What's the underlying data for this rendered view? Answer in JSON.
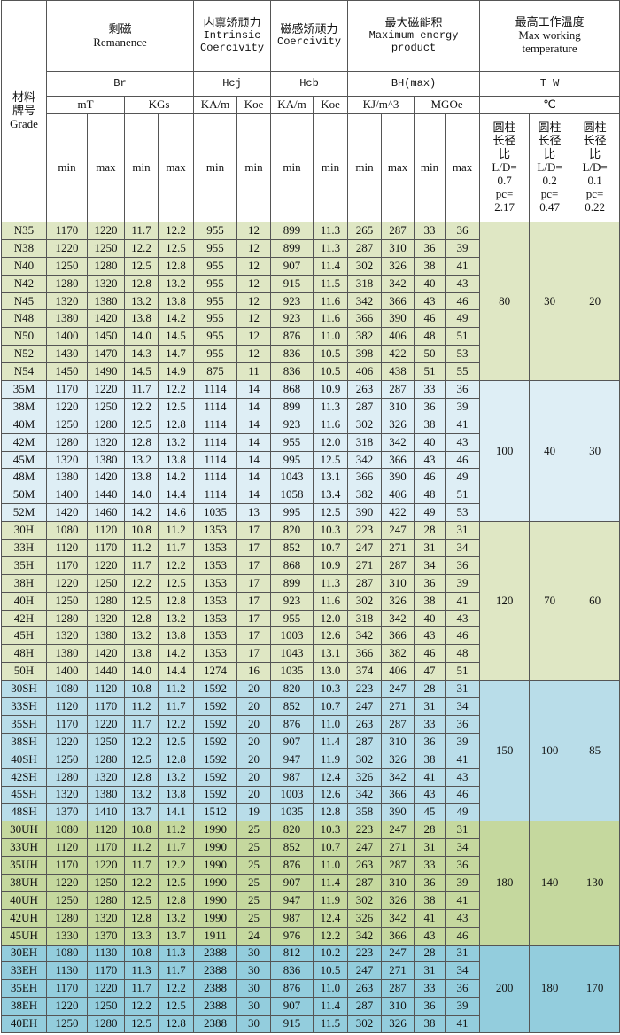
{
  "header": {
    "grade": [
      "材料",
      "牌号",
      "Grade"
    ],
    "remanence": [
      "剩磁",
      "Remanence"
    ],
    "intrinsic": [
      "内禀矫顽力",
      "Intrinsic",
      "Coercivity"
    ],
    "coercivity": [
      "磁感矫顽力",
      "Coercivity"
    ],
    "energy": [
      "最大磁能积",
      "Maximum energy",
      "product"
    ],
    "temperature": [
      "最高工作温度",
      "Max working",
      "temperature"
    ],
    "symbols": {
      "br": "Br",
      "hcj": "Hcj",
      "hcb": "Hcb",
      "bh": "BH(max)",
      "tw": "T W"
    },
    "units": {
      "mt": "mT",
      "kgs": "KGs",
      "kam1": "KA/m",
      "koe1": "Koe",
      "kam2": "KA/m",
      "koe2": "Koe",
      "kj": "KJ/m^3",
      "mgoe": "MGOe",
      "c": "℃"
    },
    "minmax": [
      "min",
      "max",
      "min",
      "max",
      "min",
      "min",
      "min",
      "min",
      "min",
      "max",
      "min",
      "max"
    ],
    "temp_cols": [
      [
        "圆柱",
        "长径",
        "比",
        "L/D=",
        "0.7",
        "pc=",
        "2.17"
      ],
      [
        "圆柱",
        "长径",
        "比",
        "L/D=",
        "0.2",
        "pc=",
        "0.47"
      ],
      [
        "圆柱",
        "长径",
        "比",
        "L/D=",
        "0.1",
        "pc=",
        "0.22"
      ]
    ]
  },
  "colors": {
    "N": "#dfe7c4",
    "M": "#deeef5",
    "H": "#dfe7c4",
    "SH": "#b9dde9",
    "UH": "#c5d89e",
    "EH": "#93cddd"
  },
  "groups": [
    {
      "id": "N",
      "temps": [
        "80",
        "30",
        "20"
      ],
      "rows": [
        [
          "N35",
          "1170",
          "1220",
          "11.7",
          "12.2",
          "955",
          "12",
          "899",
          "11.3",
          "265",
          "287",
          "33",
          "36"
        ],
        [
          "N38",
          "1220",
          "1250",
          "12.2",
          "12.5",
          "955",
          "12",
          "899",
          "11.3",
          "287",
          "310",
          "36",
          "39"
        ],
        [
          "N40",
          "1250",
          "1280",
          "12.5",
          "12.8",
          "955",
          "12",
          "907",
          "11.4",
          "302",
          "326",
          "38",
          "41"
        ],
        [
          "N42",
          "1280",
          "1320",
          "12.8",
          "13.2",
          "955",
          "12",
          "915",
          "11.5",
          "318",
          "342",
          "40",
          "43"
        ],
        [
          "N45",
          "1320",
          "1380",
          "13.2",
          "13.8",
          "955",
          "12",
          "923",
          "11.6",
          "342",
          "366",
          "43",
          "46"
        ],
        [
          "N48",
          "1380",
          "1420",
          "13.8",
          "14.2",
          "955",
          "12",
          "923",
          "11.6",
          "366",
          "390",
          "46",
          "49"
        ],
        [
          "N50",
          "1400",
          "1450",
          "14.0",
          "14.5",
          "955",
          "12",
          "876",
          "11.0",
          "382",
          "406",
          "48",
          "51"
        ],
        [
          "N52",
          "1430",
          "1470",
          "14.3",
          "14.7",
          "955",
          "12",
          "836",
          "10.5",
          "398",
          "422",
          "50",
          "53"
        ],
        [
          "N54",
          "1450",
          "1490",
          "14.5",
          "14.9",
          "875",
          "11",
          "836",
          "10.5",
          "406",
          "438",
          "51",
          "55"
        ]
      ]
    },
    {
      "id": "M",
      "temps": [
        "100",
        "40",
        "30"
      ],
      "rows": [
        [
          "35M",
          "1170",
          "1220",
          "11.7",
          "12.2",
          "1114",
          "14",
          "868",
          "10.9",
          "263",
          "287",
          "33",
          "36"
        ],
        [
          "38M",
          "1220",
          "1250",
          "12.2",
          "12.5",
          "1114",
          "14",
          "899",
          "11.3",
          "287",
          "310",
          "36",
          "39"
        ],
        [
          "40M",
          "1250",
          "1280",
          "12.5",
          "12.8",
          "1114",
          "14",
          "923",
          "11.6",
          "302",
          "326",
          "38",
          "41"
        ],
        [
          "42M",
          "1280",
          "1320",
          "12.8",
          "13.2",
          "1114",
          "14",
          "955",
          "12.0",
          "318",
          "342",
          "40",
          "43"
        ],
        [
          "45M",
          "1320",
          "1380",
          "13.2",
          "13.8",
          "1114",
          "14",
          "995",
          "12.5",
          "342",
          "366",
          "43",
          "46"
        ],
        [
          "48M",
          "1380",
          "1420",
          "13.8",
          "14.2",
          "1114",
          "14",
          "1043",
          "13.1",
          "366",
          "390",
          "46",
          "49"
        ],
        [
          "50M",
          "1400",
          "1440",
          "14.0",
          "14.4",
          "1114",
          "14",
          "1058",
          "13.4",
          "382",
          "406",
          "48",
          "51"
        ],
        [
          "52M",
          "1420",
          "1460",
          "14.2",
          "14.6",
          "1035",
          "13",
          "995",
          "12.5",
          "390",
          "422",
          "49",
          "53"
        ]
      ]
    },
    {
      "id": "H",
      "temps": [
        "120",
        "70",
        "60"
      ],
      "rows": [
        [
          "30H",
          "1080",
          "1120",
          "10.8",
          "11.2",
          "1353",
          "17",
          "820",
          "10.3",
          "223",
          "247",
          "28",
          "31"
        ],
        [
          "33H",
          "1120",
          "1170",
          "11.2",
          "11.7",
          "1353",
          "17",
          "852",
          "10.7",
          "247",
          "271",
          "31",
          "34"
        ],
        [
          "35H",
          "1170",
          "1220",
          "11.7",
          "12.2",
          "1353",
          "17",
          "868",
          "10.9",
          "271",
          "287",
          "34",
          "36"
        ],
        [
          "38H",
          "1220",
          "1250",
          "12.2",
          "12.5",
          "1353",
          "17",
          "899",
          "11.3",
          "287",
          "310",
          "36",
          "39"
        ],
        [
          "40H",
          "1250",
          "1280",
          "12.5",
          "12.8",
          "1353",
          "17",
          "923",
          "11.6",
          "302",
          "326",
          "38",
          "41"
        ],
        [
          "42H",
          "1280",
          "1320",
          "12.8",
          "13.2",
          "1353",
          "17",
          "955",
          "12.0",
          "318",
          "342",
          "40",
          "43"
        ],
        [
          "45H",
          "1320",
          "1380",
          "13.2",
          "13.8",
          "1353",
          "17",
          "1003",
          "12.6",
          "342",
          "366",
          "43",
          "46"
        ],
        [
          "48H",
          "1380",
          "1420",
          "13.8",
          "14.2",
          "1353",
          "17",
          "1043",
          "13.1",
          "366",
          "382",
          "46",
          "48"
        ],
        [
          "50H",
          "1400",
          "1440",
          "14.0",
          "14.4",
          "1274",
          "16",
          "1035",
          "13.0",
          "374",
          "406",
          "47",
          "51"
        ]
      ]
    },
    {
      "id": "SH",
      "temps": [
        "150",
        "100",
        "85"
      ],
      "rows": [
        [
          "30SH",
          "1080",
          "1120",
          "10.8",
          "11.2",
          "1592",
          "20",
          "820",
          "10.3",
          "223",
          "247",
          "28",
          "31"
        ],
        [
          "33SH",
          "1120",
          "1170",
          "11.2",
          "11.7",
          "1592",
          "20",
          "852",
          "10.7",
          "247",
          "271",
          "31",
          "34"
        ],
        [
          "35SH",
          "1170",
          "1220",
          "11.7",
          "12.2",
          "1592",
          "20",
          "876",
          "11.0",
          "263",
          "287",
          "33",
          "36"
        ],
        [
          "38SH",
          "1220",
          "1250",
          "12.2",
          "12.5",
          "1592",
          "20",
          "907",
          "11.4",
          "287",
          "310",
          "36",
          "39"
        ],
        [
          "40SH",
          "1250",
          "1280",
          "12.5",
          "12.8",
          "1592",
          "20",
          "947",
          "11.9",
          "302",
          "326",
          "38",
          "41"
        ],
        [
          "42SH",
          "1280",
          "1320",
          "12.8",
          "13.2",
          "1592",
          "20",
          "987",
          "12.4",
          "326",
          "342",
          "41",
          "43"
        ],
        [
          "45SH",
          "1320",
          "1380",
          "13.2",
          "13.8",
          "1592",
          "20",
          "1003",
          "12.6",
          "342",
          "366",
          "43",
          "46"
        ],
        [
          "48SH",
          "1370",
          "1410",
          "13.7",
          "14.1",
          "1512",
          "19",
          "1035",
          "12.8",
          "358",
          "390",
          "45",
          "49"
        ]
      ]
    },
    {
      "id": "UH",
      "temps": [
        "180",
        "140",
        "130"
      ],
      "rows": [
        [
          "30UH",
          "1080",
          "1120",
          "10.8",
          "11.2",
          "1990",
          "25",
          "820",
          "10.3",
          "223",
          "247",
          "28",
          "31"
        ],
        [
          "33UH",
          "1120",
          "1170",
          "11.2",
          "11.7",
          "1990",
          "25",
          "852",
          "10.7",
          "247",
          "271",
          "31",
          "34"
        ],
        [
          "35UH",
          "1170",
          "1220",
          "11.7",
          "12.2",
          "1990",
          "25",
          "876",
          "11.0",
          "263",
          "287",
          "33",
          "36"
        ],
        [
          "38UH",
          "1220",
          "1250",
          "12.2",
          "12.5",
          "1990",
          "25",
          "907",
          "11.4",
          "287",
          "310",
          "36",
          "39"
        ],
        [
          "40UH",
          "1250",
          "1280",
          "12.5",
          "12.8",
          "1990",
          "25",
          "947",
          "11.9",
          "302",
          "326",
          "38",
          "41"
        ],
        [
          "42UH",
          "1280",
          "1320",
          "12.8",
          "13.2",
          "1990",
          "25",
          "987",
          "12.4",
          "326",
          "342",
          "41",
          "43"
        ],
        [
          "45UH",
          "1330",
          "1370",
          "13.3",
          "13.7",
          "1911",
          "24",
          "976",
          "12.2",
          "342",
          "366",
          "43",
          "46"
        ]
      ]
    },
    {
      "id": "EH",
      "temps": [
        "200",
        "180",
        "170"
      ],
      "rows": [
        [
          "30EH",
          "1080",
          "1130",
          "10.8",
          "11.3",
          "2388",
          "30",
          "812",
          "10.2",
          "223",
          "247",
          "28",
          "31"
        ],
        [
          "33EH",
          "1130",
          "1170",
          "11.3",
          "11.7",
          "2388",
          "30",
          "836",
          "10.5",
          "247",
          "271",
          "31",
          "34"
        ],
        [
          "35EH",
          "1170",
          "1220",
          "11.7",
          "12.2",
          "2388",
          "30",
          "876",
          "11.0",
          "263",
          "287",
          "33",
          "36"
        ],
        [
          "38EH",
          "1220",
          "1250",
          "12.2",
          "12.5",
          "2388",
          "30",
          "907",
          "11.4",
          "287",
          "310",
          "36",
          "39"
        ],
        [
          "40EH",
          "1250",
          "1280",
          "12.5",
          "12.8",
          "2388",
          "30",
          "915",
          "11.5",
          "302",
          "326",
          "38",
          "41"
        ]
      ]
    }
  ]
}
